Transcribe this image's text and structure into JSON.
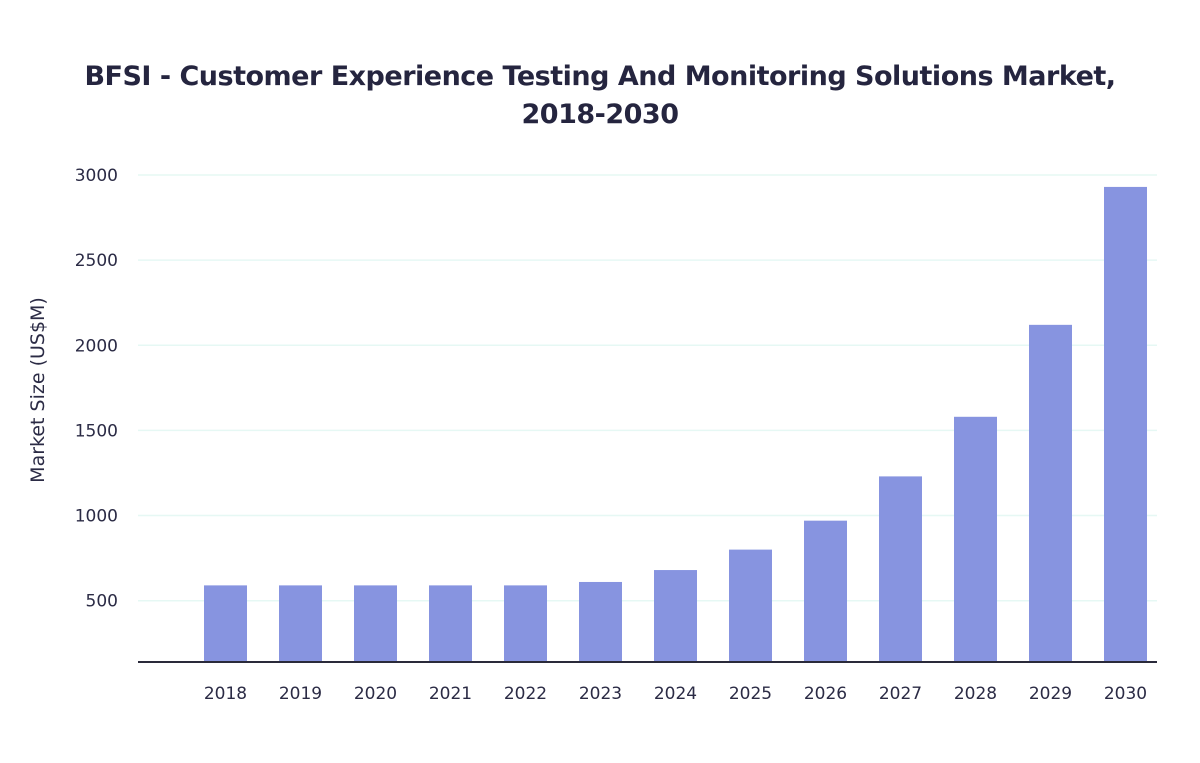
{
  "chart_data": {
    "type": "bar",
    "title_line1": "BFSI - Customer Experience Testing And Monitoring Solutions Market,",
    "title_line2": "2018-2030",
    "xlabel": "",
    "ylabel": "Market Size (US$M)",
    "categories": [
      "2018",
      "2019",
      "2020",
      "2021",
      "2022",
      "2023",
      "2024",
      "2025",
      "2026",
      "2027",
      "2028",
      "2029",
      "2030"
    ],
    "values": [
      590,
      590,
      590,
      590,
      590,
      610,
      680,
      800,
      970,
      1230,
      1580,
      2120,
      2930
    ],
    "yticks": [
      500,
      1000,
      1500,
      2000,
      2500,
      3000
    ],
    "ylim": [
      140,
      3000
    ],
    "grid": true,
    "colors": {
      "bar": "#8794e0",
      "grid": "#e6f8f4",
      "axis": "#2a2a3a",
      "text": "#2b2b45"
    }
  }
}
